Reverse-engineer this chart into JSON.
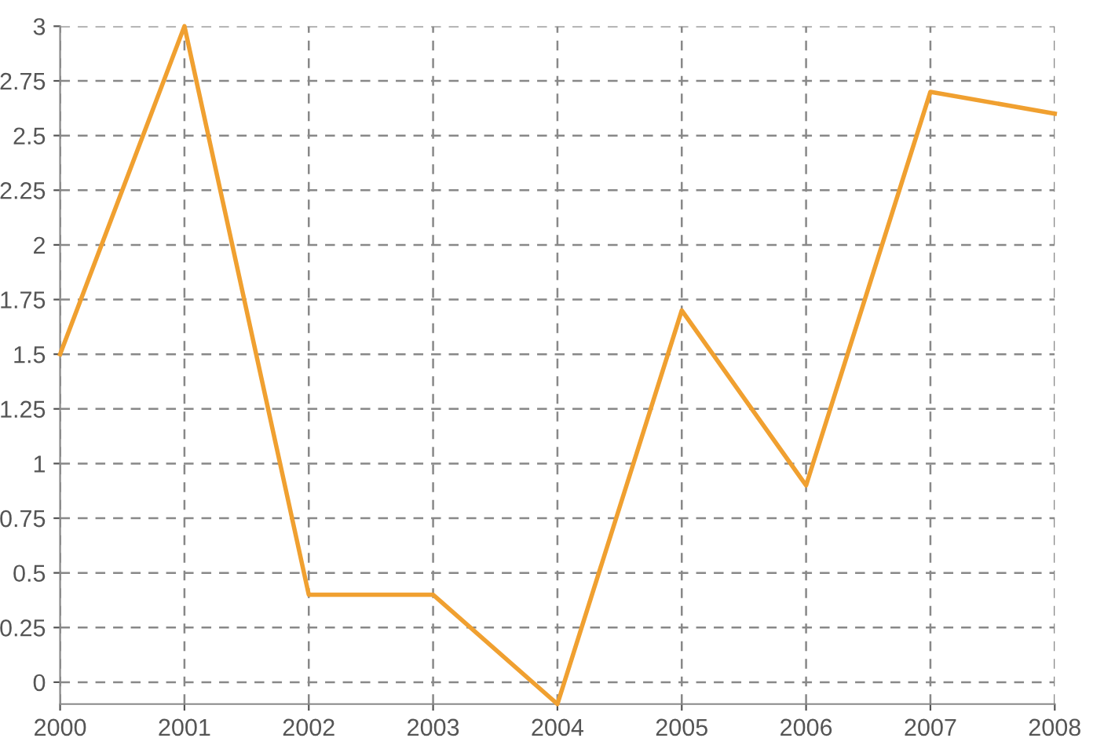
{
  "chart_data": {
    "type": "line",
    "x": [
      2000,
      2001,
      2002,
      2003,
      2004,
      2005,
      2006,
      2007,
      2008
    ],
    "series": [
      {
        "color": "#f0a030",
        "values": [
          1.5,
          3,
          0.4,
          0.4,
          -0.1,
          1.7,
          0.9,
          2.7,
          2.6
        ]
      }
    ],
    "xlim": [
      2000,
      2008
    ],
    "xticks": [
      2000,
      2001,
      2002,
      2003,
      2004,
      2005,
      2006,
      2007,
      2008
    ],
    "ylim": [
      -0.1,
      3
    ],
    "yticks": [
      0,
      0.25,
      0.5,
      0.75,
      1,
      1.25,
      1.5,
      1.75,
      2,
      2.25,
      2.5,
      2.75,
      3
    ],
    "grid": true,
    "marker": "none",
    "line_style": "solid"
  }
}
